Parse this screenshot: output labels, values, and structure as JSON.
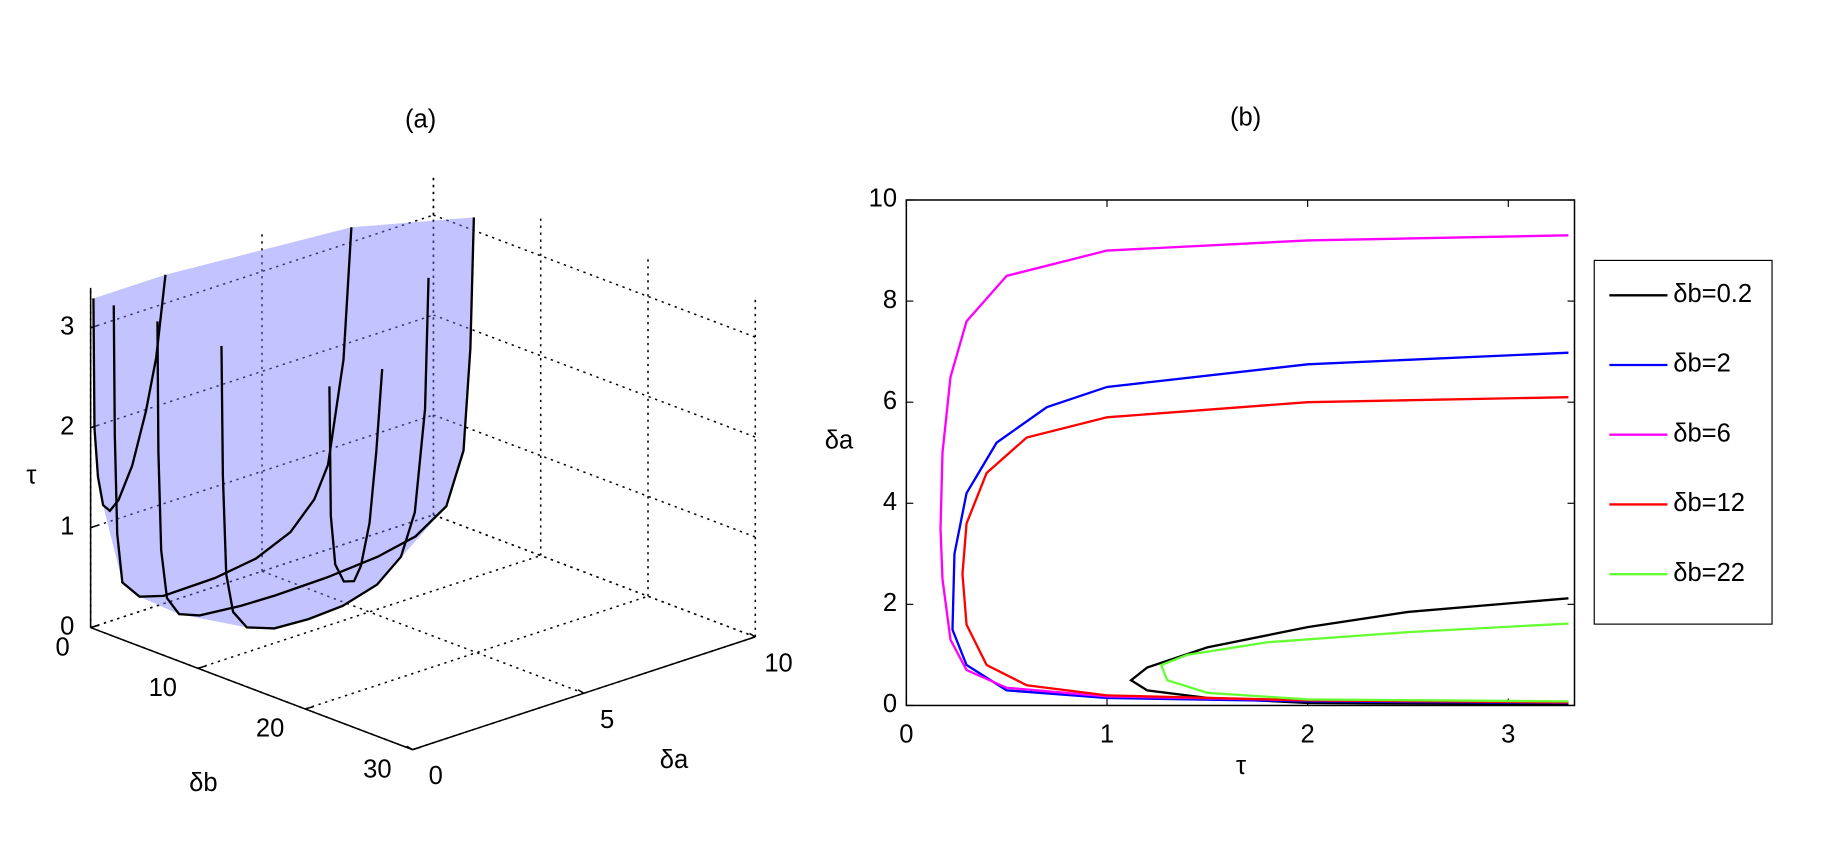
{
  "chart_data": [
    {
      "type": "surface3d",
      "title": "(a)",
      "xlabel": "δa",
      "ylabel": "δb",
      "zlabel": "τ",
      "xlim": [
        0,
        10
      ],
      "ylim": [
        0,
        30
      ],
      "zlim": [
        0,
        3.4
      ],
      "xticks": [
        0,
        5,
        10
      ],
      "yticks": [
        0,
        10,
        20,
        30
      ],
      "zticks": [
        0,
        1,
        2,
        3
      ],
      "surface_color": "#7b7bff",
      "curve_color": "#000000",
      "grid": true
    },
    {
      "type": "line",
      "title": "(b)",
      "xlabel": "τ",
      "ylabel": "δa",
      "xlim": [
        0,
        3.33
      ],
      "ylim": [
        0,
        10
      ],
      "xticks": [
        0,
        1,
        2,
        3
      ],
      "yticks": [
        0,
        2,
        4,
        6,
        8,
        10
      ],
      "legend": "outside-right",
      "series": [
        {
          "name": "δb=0.2",
          "delta_b": 0.2,
          "color": "#000000",
          "x": [
            3.3,
            2,
            1.5,
            1.2,
            1.12,
            1.2,
            1.5,
            2,
            2.5,
            3.3
          ],
          "y": [
            0.02,
            0.05,
            0.15,
            0.3,
            0.5,
            0.75,
            1.15,
            1.55,
            1.85,
            2.12
          ]
        },
        {
          "name": "δb=2",
          "delta_b": 2,
          "color": "#0000ff",
          "x": [
            3.3,
            2,
            1,
            0.5,
            0.3,
            0.23,
            0.24,
            0.3,
            0.45,
            0.7,
            1,
            2,
            3.3
          ],
          "y": [
            0.05,
            0.08,
            0.15,
            0.3,
            0.8,
            1.5,
            3,
            4.2,
            5.2,
            5.9,
            6.3,
            6.75,
            6.98
          ]
        },
        {
          "name": "δb=6",
          "delta_b": 6,
          "color": "#ff00ff",
          "x": [
            3.3,
            2,
            1,
            0.5,
            0.3,
            0.22,
            0.18,
            0.17,
            0.18,
            0.22,
            0.3,
            0.5,
            1,
            2,
            3.3
          ],
          "y": [
            0.07,
            0.1,
            0.18,
            0.35,
            0.7,
            1.3,
            2.5,
            3.5,
            5,
            6.5,
            7.6,
            8.5,
            9,
            9.2,
            9.3
          ]
        },
        {
          "name": "δb=12",
          "delta_b": 12,
          "color": "#ff0000",
          "x": [
            3.3,
            2,
            1,
            0.6,
            0.4,
            0.3,
            0.28,
            0.3,
            0.4,
            0.6,
            1,
            2,
            3.3
          ],
          "y": [
            0.06,
            0.1,
            0.2,
            0.4,
            0.8,
            1.6,
            2.6,
            3.6,
            4.6,
            5.3,
            5.7,
            6,
            6.1
          ]
        },
        {
          "name": "δb=22",
          "delta_b": 22,
          "color": "#66ff33",
          "x": [
            3.3,
            2,
            1.5,
            1.3,
            1.27,
            1.4,
            1.8,
            2.5,
            3.3
          ],
          "y": [
            0.08,
            0.12,
            0.25,
            0.5,
            0.8,
            1,
            1.25,
            1.45,
            1.62
          ]
        }
      ]
    }
  ]
}
